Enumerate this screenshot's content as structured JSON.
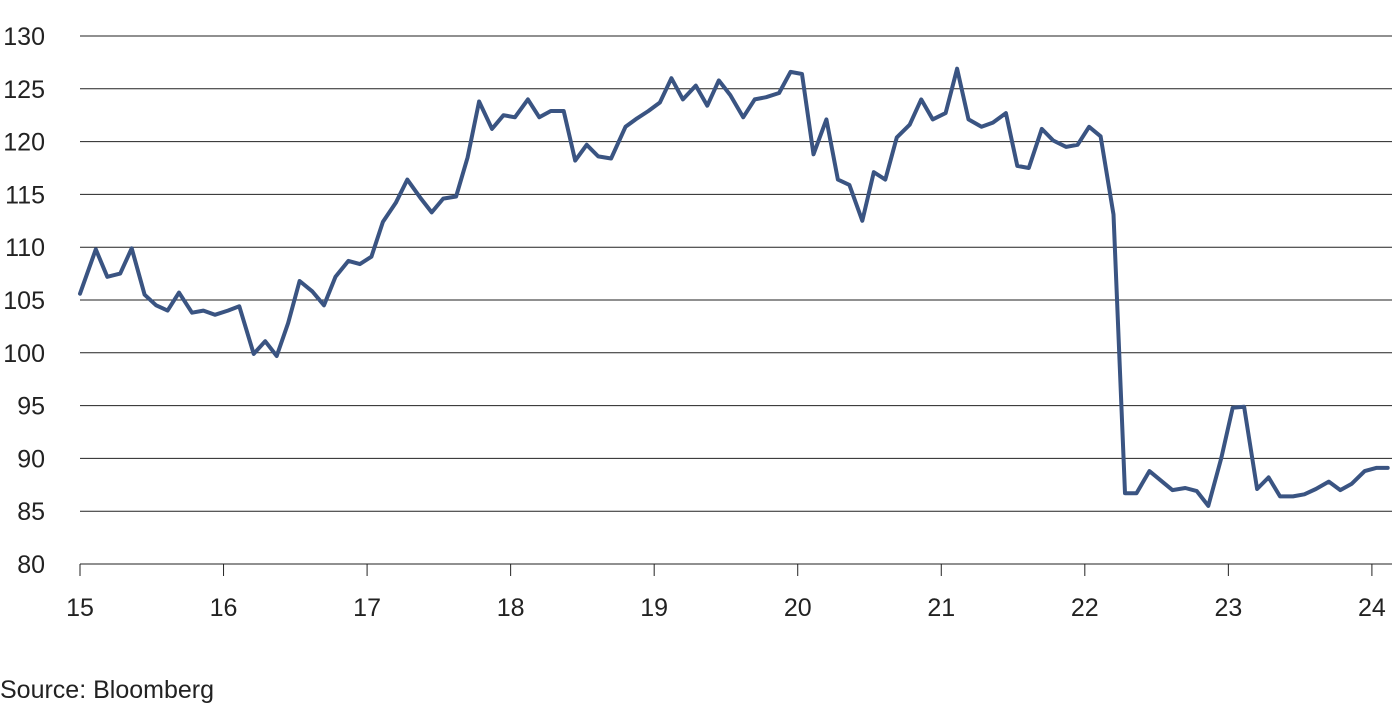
{
  "source_note": "Source: Bloomberg",
  "colors": {
    "line": "#3a5482",
    "grid": "#222222",
    "text": "#222222"
  },
  "chart_data": {
    "type": "line",
    "title": "",
    "xlabel": "",
    "ylabel": "",
    "ylim": [
      80,
      130
    ],
    "yticks": [
      80,
      85,
      90,
      95,
      100,
      105,
      110,
      115,
      120,
      125,
      130
    ],
    "xlim": [
      2015.0,
      2024.14
    ],
    "xticks": [
      {
        "value": 2015,
        "label": "15"
      },
      {
        "value": 2016,
        "label": "16"
      },
      {
        "value": 2017,
        "label": "17"
      },
      {
        "value": 2018,
        "label": "18"
      },
      {
        "value": 2019,
        "label": "19"
      },
      {
        "value": 2020,
        "label": "20"
      },
      {
        "value": 2021,
        "label": "21"
      },
      {
        "value": 2022,
        "label": "22"
      },
      {
        "value": 2023,
        "label": "23"
      },
      {
        "value": 2024,
        "label": "24"
      }
    ],
    "grid": true,
    "legend": "none",
    "series": [
      {
        "x": [
          2015.0,
          2015.11,
          2015.19,
          2015.28,
          2015.36,
          2015.45,
          2015.53,
          2015.61,
          2015.69,
          2015.78,
          2015.86,
          2015.94,
          2016.03,
          2016.11,
          2016.21,
          2016.29,
          2016.37,
          2016.45,
          2016.53,
          2016.62,
          2016.7,
          2016.78,
          2016.87,
          2016.95,
          2017.03,
          2017.11,
          2017.2,
          2017.28,
          2017.37,
          2017.45,
          2017.53,
          2017.62,
          2017.7,
          2017.78,
          2017.87,
          2017.95,
          2018.03,
          2018.12,
          2018.2,
          2018.28,
          2018.37,
          2018.45,
          2018.53,
          2018.61,
          2018.7,
          2018.8,
          2018.88,
          2018.96,
          2019.04,
          2019.12,
          2019.2,
          2019.29,
          2019.37,
          2019.45,
          2019.53,
          2019.62,
          2019.7,
          2019.78,
          2019.87,
          2019.95,
          2020.03,
          2020.11,
          2020.2,
          2020.28,
          2020.36,
          2020.45,
          2020.53,
          2020.61,
          2020.69,
          2020.78,
          2020.86,
          2020.94,
          2021.03,
          2021.11,
          2021.19,
          2021.28,
          2021.36,
          2021.45,
          2021.53,
          2021.61,
          2021.7,
          2021.78,
          2021.87,
          2021.95,
          2022.03,
          2022.11,
          2022.2,
          2022.28,
          2022.36,
          2022.45,
          2022.53,
          2022.61,
          2022.7,
          2022.78,
          2022.86,
          2022.95,
          2023.03,
          2023.11,
          2023.2,
          2023.28,
          2023.36,
          2023.45,
          2023.53,
          2023.61,
          2023.7,
          2023.78,
          2023.86,
          2023.95,
          2024.03,
          2024.11
        ],
        "y": [
          105.6,
          109.8,
          107.2,
          107.5,
          109.9,
          105.5,
          104.5,
          104.0,
          105.7,
          103.8,
          104.0,
          103.6,
          104.0,
          104.4,
          99.9,
          101.1,
          99.7,
          102.8,
          106.8,
          105.8,
          104.5,
          107.2,
          108.7,
          108.4,
          109.1,
          112.4,
          114.2,
          116.4,
          114.7,
          113.3,
          114.6,
          114.8,
          118.5,
          123.8,
          121.2,
          122.5,
          122.3,
          124.0,
          122.3,
          122.9,
          122.9,
          118.2,
          119.7,
          118.6,
          118.4,
          121.4,
          122.2,
          122.9,
          123.7,
          126.0,
          124.0,
          125.3,
          123.4,
          125.8,
          124.4,
          122.3,
          124.0,
          124.2,
          124.6,
          126.6,
          126.4,
          118.8,
          122.1,
          116.4,
          115.9,
          112.5,
          117.1,
          116.4,
          120.4,
          121.6,
          124.0,
          122.1,
          122.7,
          126.9,
          122.1,
          121.4,
          121.8,
          122.7,
          117.7,
          117.5,
          121.2,
          120.1,
          119.5,
          119.7,
          121.4,
          120.5,
          113.1,
          86.7,
          86.7,
          88.8,
          87.9,
          87.0,
          87.2,
          86.9,
          85.5,
          90.0,
          94.8,
          94.9,
          87.1,
          88.2,
          86.4,
          86.4,
          86.6,
          87.1,
          87.8,
          87.0,
          87.6,
          88.8,
          89.1,
          89.1
        ]
      }
    ]
  }
}
